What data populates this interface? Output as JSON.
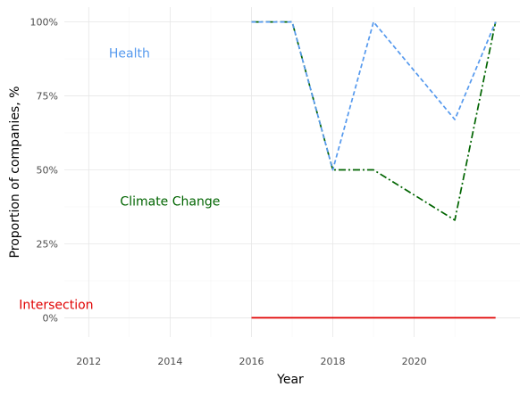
{
  "chart_data": {
    "type": "line",
    "title": "",
    "xlabel": "Year",
    "ylabel": "Proportion of companies, %",
    "xlim": [
      2011.4,
      2022.6
    ],
    "ylim": [
      -6.5,
      105
    ],
    "x_ticks": [
      2012,
      2014,
      2016,
      2018,
      2020
    ],
    "y_ticks": [
      0,
      25,
      50,
      75,
      100
    ],
    "y_tick_labels": [
      "0%",
      "25%",
      "50%",
      "75%",
      "100%"
    ],
    "grid": true,
    "legend": "none (direct text labels)",
    "series": [
      {
        "name": "Intersection",
        "display_label": "Intersection",
        "color": "#e00000",
        "dash": "solid",
        "x": [
          2016,
          2017,
          2018,
          2019,
          2020,
          2021,
          2022
        ],
        "values": [
          0,
          0,
          0,
          0,
          0,
          0,
          0
        ],
        "label_at": [
          2011.2,
          4.5
        ]
      },
      {
        "name": "Climate Change",
        "display_label": "Climate Change",
        "color": "#006400",
        "dash": "dashdot",
        "x": [
          2016,
          2017,
          2018,
          2019,
          2021,
          2022
        ],
        "values": [
          100,
          100,
          50,
          50,
          33,
          100
        ],
        "label_at": [
          2014.0,
          39.5
        ]
      },
      {
        "name": "Health",
        "display_label": "Health",
        "color": "#5599ee",
        "dash": "dashed",
        "x": [
          2016,
          2017,
          2018,
          2019,
          2021,
          2022
        ],
        "values": [
          100,
          100,
          50,
          100,
          67,
          100
        ],
        "label_at": [
          2013.0,
          89.5
        ]
      }
    ]
  }
}
